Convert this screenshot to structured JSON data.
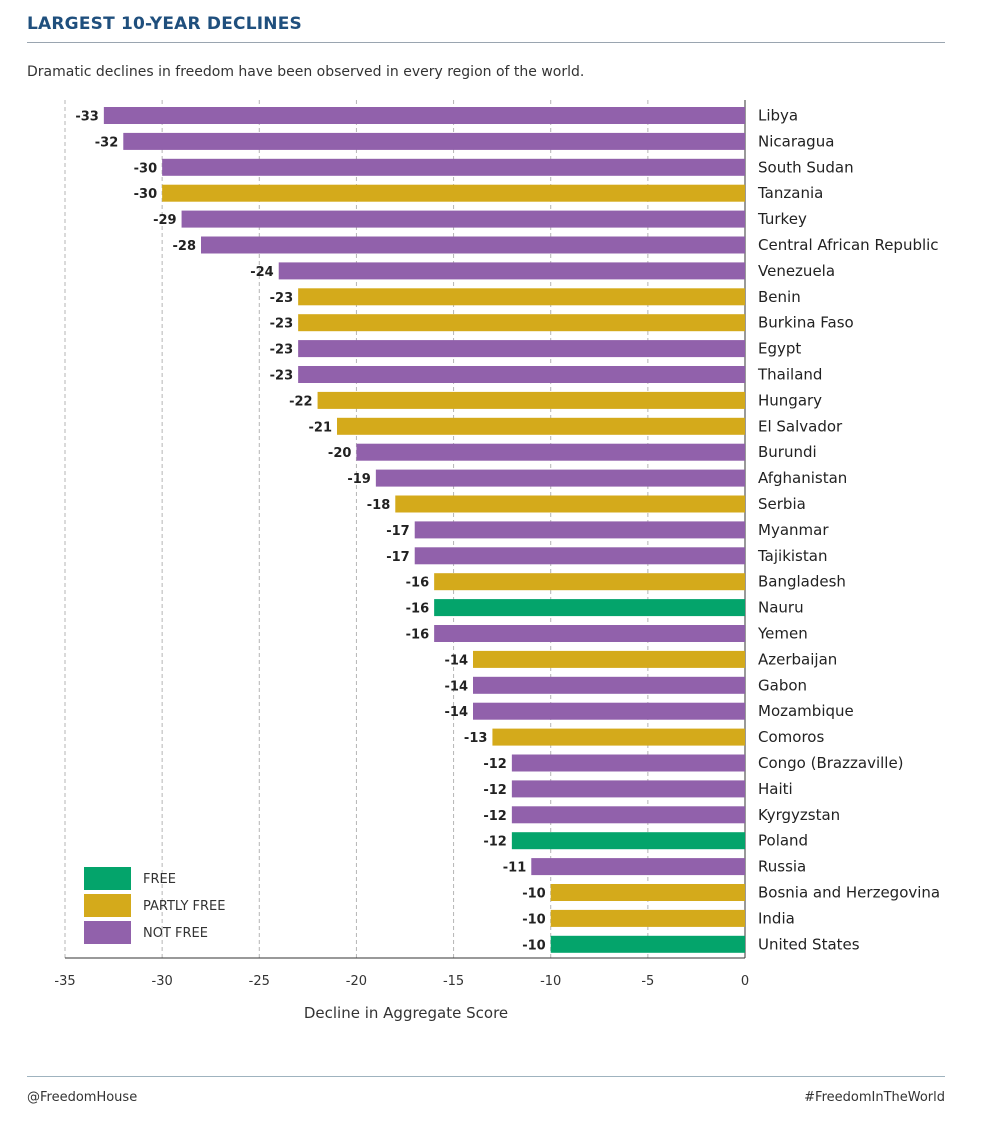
{
  "header": {
    "title": "LARGEST 10-YEAR DECLINES",
    "subtitle": "Dramatic declines in freedom have been observed in every region of the world."
  },
  "footer": {
    "left": "@FreedomHouse",
    "right": "#FreedomInTheWorld"
  },
  "colors": {
    "FREE": "#04a46b",
    "PARTLY FREE": "#d4aa1b",
    "NOT FREE": "#9161ab"
  },
  "chart_data": {
    "type": "bar",
    "orientation": "horizontal",
    "xlabel": "Decline in Aggregate Score",
    "xlim": [
      -35,
      0
    ],
    "xticks": [
      -35,
      -30,
      -25,
      -20,
      -15,
      -10,
      -5,
      0
    ],
    "grid": "vertical dashed",
    "legend_position": "bottom-left",
    "legend": [
      "FREE",
      "PARTLY FREE",
      "NOT FREE"
    ],
    "categories": [
      "Libya",
      "Nicaragua",
      "South Sudan",
      "Tanzania",
      "Turkey",
      "Central African Republic",
      "Venezuela",
      "Benin",
      "Burkina Faso",
      "Egypt",
      "Thailand",
      "Hungary",
      "El Salvador",
      "Burundi",
      "Afghanistan",
      "Serbia",
      "Myanmar",
      "Tajikistan",
      "Bangladesh",
      "Nauru",
      "Yemen",
      "Azerbaijan",
      "Gabon",
      "Mozambique",
      "Comoros",
      "Congo (Brazzaville)",
      "Haiti",
      "Kyrgyzstan",
      "Poland",
      "Russia",
      "Bosnia and Herzegovina",
      "India",
      "United States"
    ],
    "values": [
      -33,
      -32,
      -30,
      -30,
      -29,
      -28,
      -24,
      -23,
      -23,
      -23,
      -23,
      -22,
      -21,
      -20,
      -19,
      -18,
      -17,
      -17,
      -16,
      -16,
      -16,
      -14,
      -14,
      -14,
      -13,
      -12,
      -12,
      -12,
      -12,
      -11,
      -10,
      -10,
      -10
    ],
    "status": [
      "NOT FREE",
      "NOT FREE",
      "NOT FREE",
      "PARTLY FREE",
      "NOT FREE",
      "NOT FREE",
      "NOT FREE",
      "PARTLY FREE",
      "PARTLY FREE",
      "NOT FREE",
      "NOT FREE",
      "PARTLY FREE",
      "PARTLY FREE",
      "NOT FREE",
      "NOT FREE",
      "PARTLY FREE",
      "NOT FREE",
      "NOT FREE",
      "PARTLY FREE",
      "FREE",
      "NOT FREE",
      "PARTLY FREE",
      "NOT FREE",
      "NOT FREE",
      "PARTLY FREE",
      "NOT FREE",
      "NOT FREE",
      "NOT FREE",
      "FREE",
      "NOT FREE",
      "PARTLY FREE",
      "PARTLY FREE",
      "FREE"
    ]
  }
}
